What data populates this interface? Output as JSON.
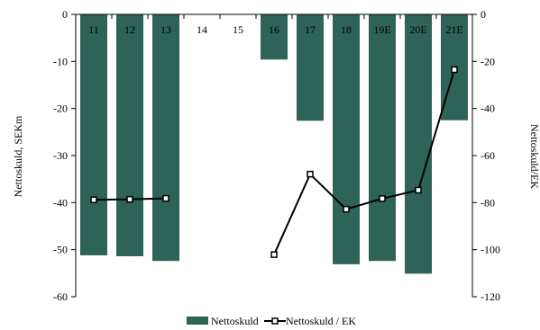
{
  "chart_data": {
    "type": "bar",
    "categories": [
      "11",
      "12",
      "13",
      "14",
      "15",
      "16",
      "17",
      "18",
      "19E",
      "20E",
      "21E"
    ],
    "series": [
      {
        "name": "Nettoskuld",
        "kind": "bar",
        "axis": "left",
        "color": "#2e6357",
        "values": [
          -51.2,
          -51.4,
          -52.4,
          null,
          null,
          -9.6,
          -22.6,
          -53.1,
          -52.4,
          -55.1,
          -22.5
        ]
      },
      {
        "name": "Nettoskuld / EK",
        "kind": "line",
        "axis": "right",
        "color": "#000000",
        "marker": "open-square",
        "values": [
          -78.8,
          -78.6,
          -78.2,
          null,
          null,
          -102.1,
          -67.9,
          -82.8,
          -78.3,
          -74.7,
          -23.5
        ]
      }
    ],
    "ylabel": "Nettoskuld, SEKm",
    "y2label": "Nettoskuld/EK",
    "ylim": [
      -60,
      0
    ],
    "y2lim": [
      -120,
      0
    ],
    "yticks": [
      "0",
      "-10",
      "-20",
      "-30",
      "-40",
      "-50",
      "-60"
    ],
    "y2ticks": [
      "0",
      "-20",
      "-40",
      "-60",
      "-80",
      "-100",
      "-120"
    ],
    "legend_position": "bottom",
    "grid": false
  }
}
